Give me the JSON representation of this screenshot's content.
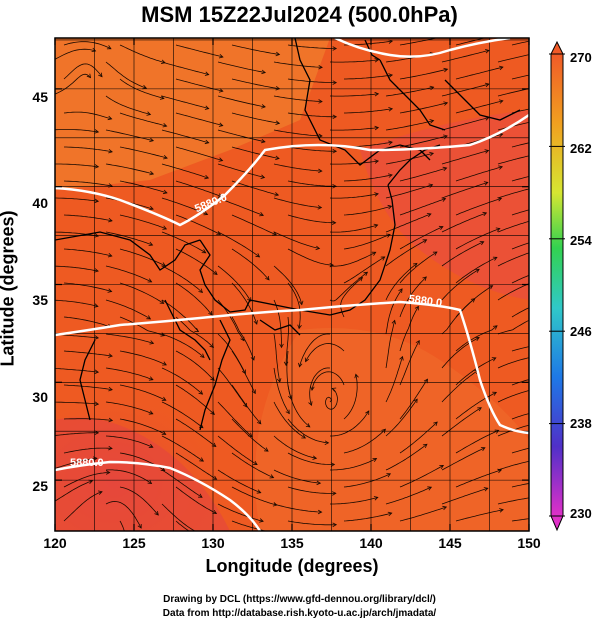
{
  "title": "MSM 15Z22Jul2024 (500.0hPa)",
  "axes": {
    "xlabel": "Longitude (degrees)",
    "ylabel": "Latitude  (degrees)",
    "xticks": [
      "120",
      "125",
      "130",
      "135",
      "140",
      "145",
      "150"
    ],
    "yticks": [
      "25",
      "30",
      "35",
      "40",
      "45"
    ],
    "xlim": [
      120,
      150
    ],
    "ylim": [
      22.4,
      47.6
    ]
  },
  "colorbar": {
    "ticks": [
      "270",
      "262",
      "254",
      "246",
      "238",
      "230"
    ],
    "range": [
      230,
      270
    ],
    "colors": [
      "#e030c8",
      "#3030c8",
      "#1e78e6",
      "#30c8c8",
      "#32d250",
      "#e6e632",
      "#f0a020",
      "#f05a28"
    ]
  },
  "contours": {
    "label": "5880.0"
  },
  "colors": {
    "field_base": "#ee5a22",
    "field_warm": "#f07838",
    "field_hot": "#e84a3a",
    "contour": "#ffffff"
  },
  "credits": {
    "line1": "Drawing by DCL (https://www.gfd-dennou.org/library/dcl/)",
    "line2": "Data from http://database.rish.kyoto-u.ac.jp/arch/jmadata/"
  }
}
